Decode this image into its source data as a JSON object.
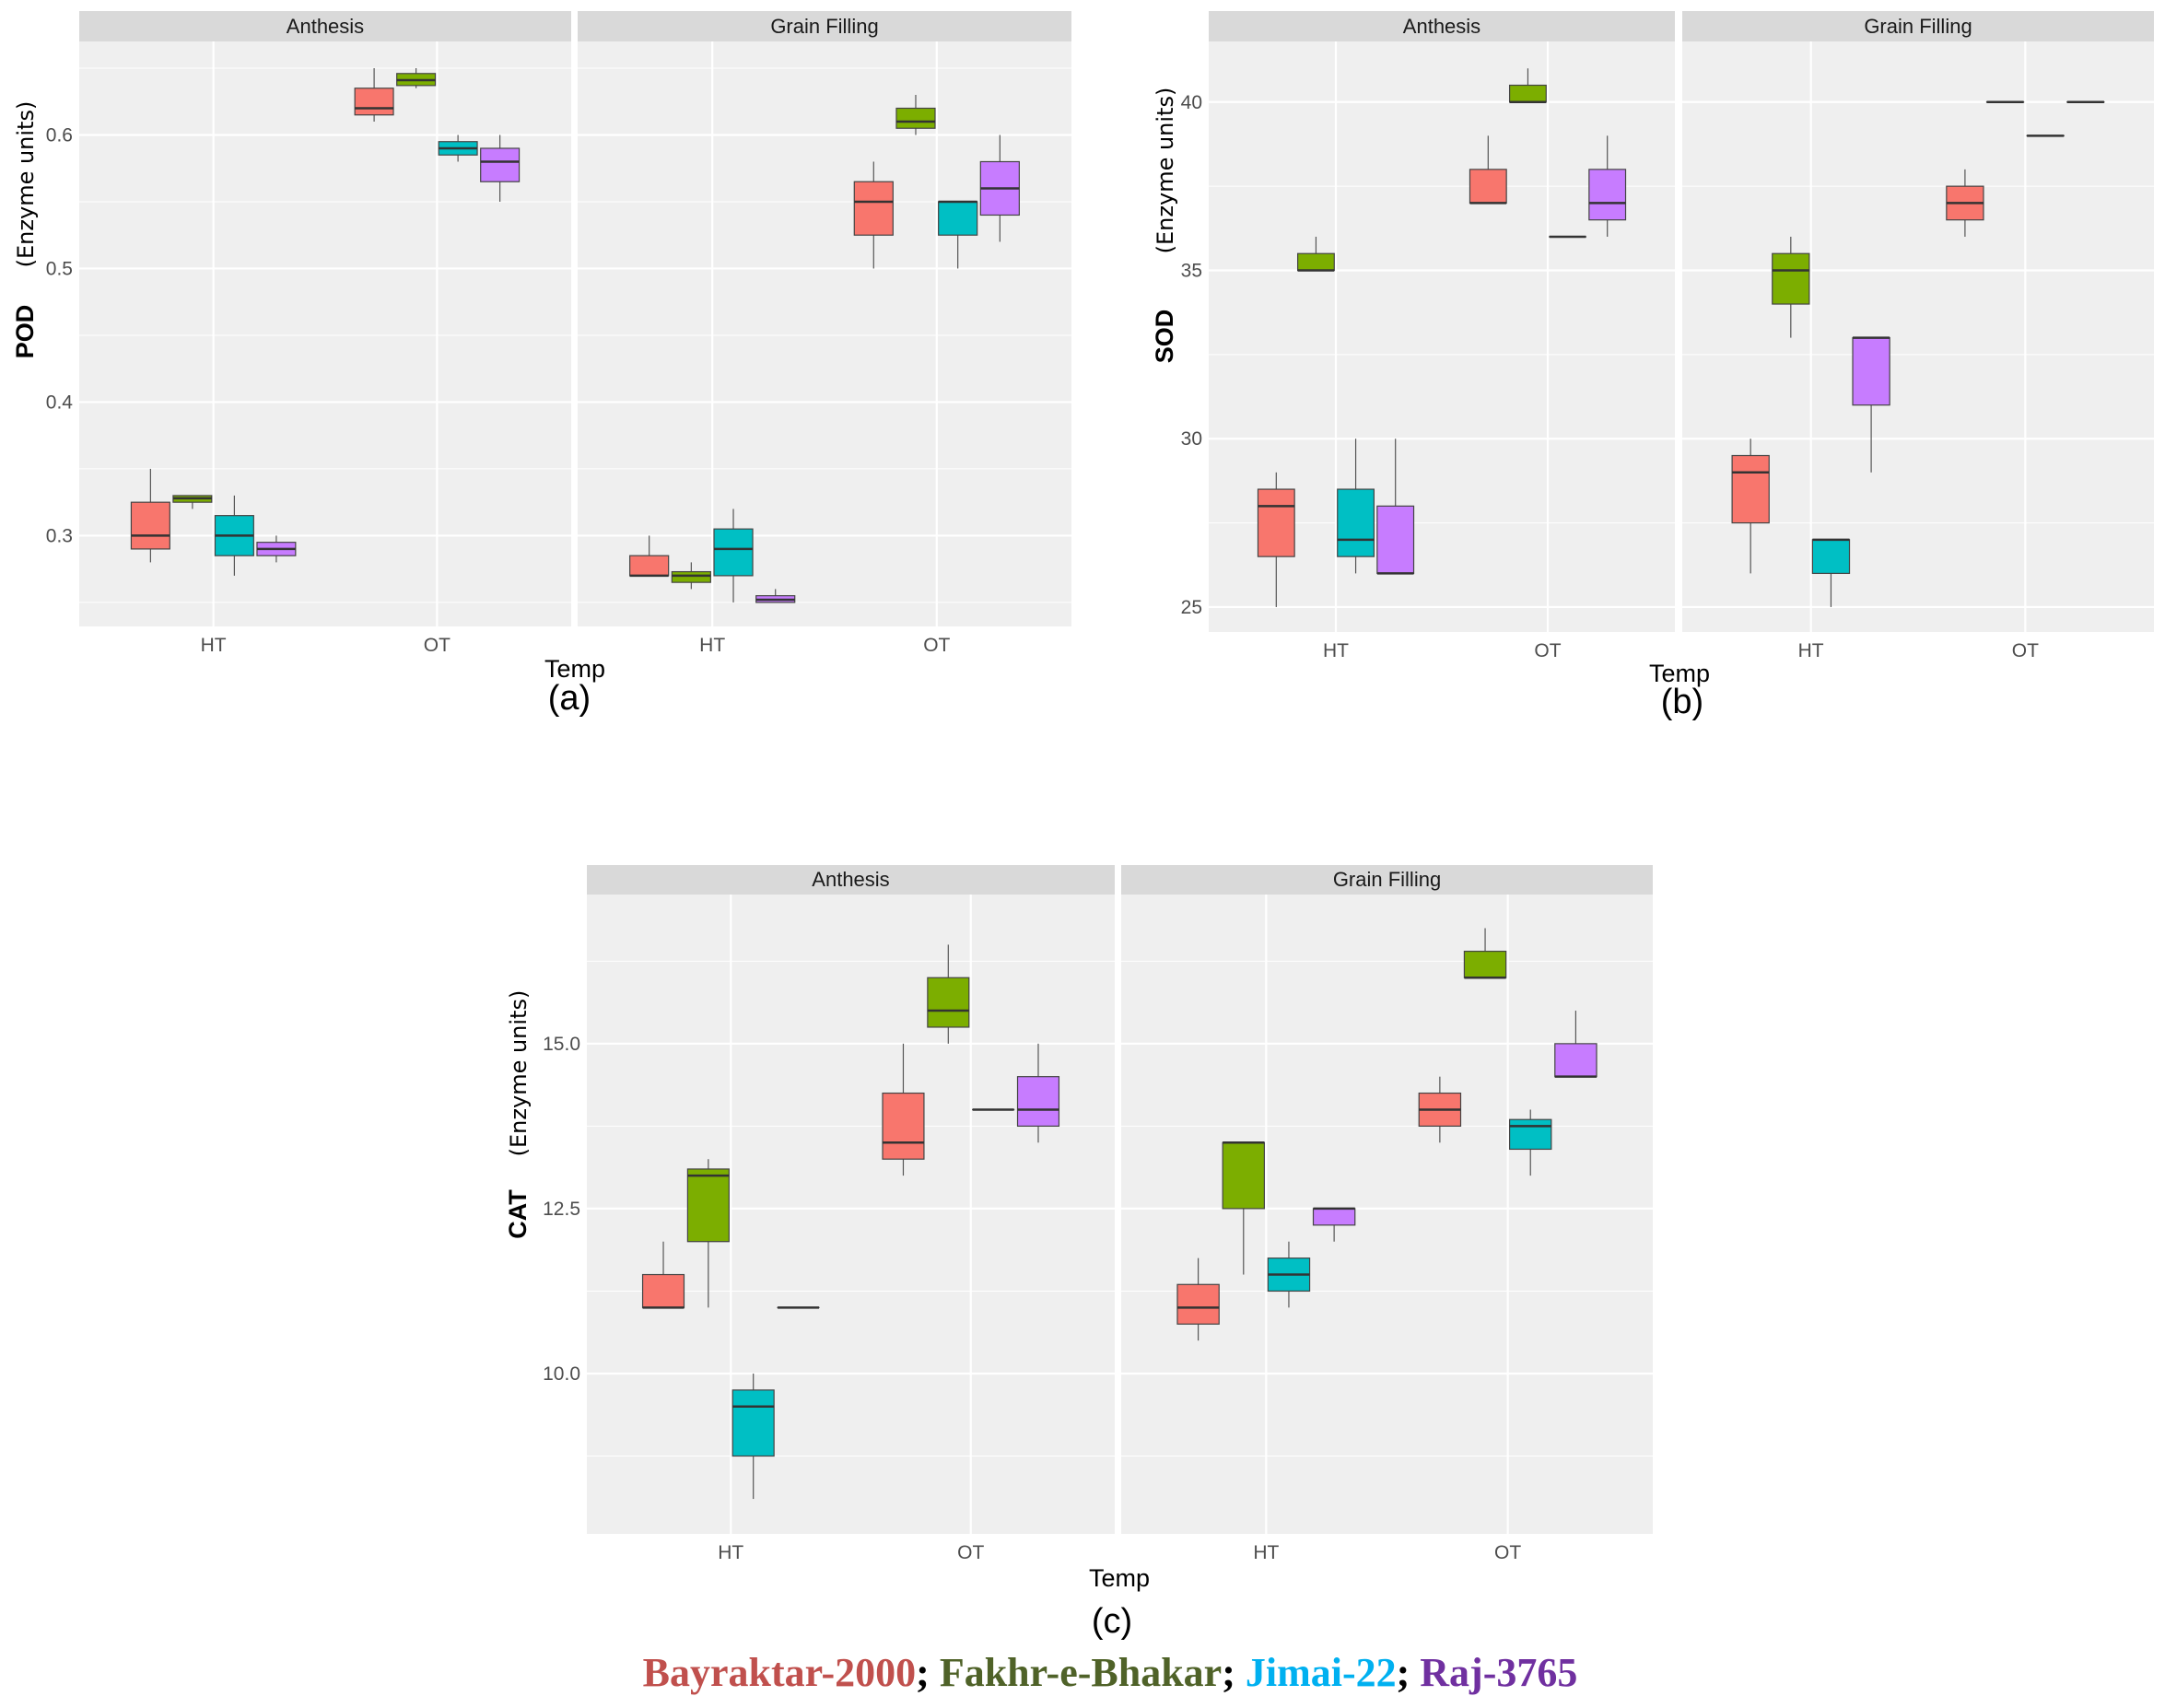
{
  "legend": {
    "items": [
      {
        "label": "Bayraktar-2000",
        "color": "#c0504d"
      },
      {
        "label": "Fakhr-e-Bhakar",
        "color": "#4f6228"
      },
      {
        "label": "Jimai-22",
        "color": "#00b0f0"
      },
      {
        "label": "Raj-3765",
        "color": "#7030a0"
      }
    ],
    "separator": ";"
  },
  "fill_colors": [
    "#F8766D",
    "#7CAE00",
    "#00BFC4",
    "#C77CFF"
  ],
  "chart_data": [
    {
      "type": "box",
      "panel_label": "(a)",
      "ylabel": "POD",
      "yunit": "(Enzyme units)",
      "xlabel": "Temp",
      "facets": [
        "Anthesis",
        "Grain Filling"
      ],
      "categories": [
        "HT",
        "OT"
      ],
      "ylim": [
        0.232,
        0.67
      ],
      "yticks": [
        0.3,
        0.4,
        0.5,
        0.6
      ],
      "ytick_labels": [
        "0.3",
        "0.4",
        "0.5",
        "0.6"
      ],
      "box_format": "[min, q1, median, q3, max]",
      "data": [
        [
          [
            [
              0.28,
              0.29,
              0.3,
              0.325,
              0.35
            ],
            [
              0.32,
              0.325,
              0.328,
              0.33,
              0.33
            ],
            [
              0.27,
              0.285,
              0.3,
              0.315,
              0.33
            ],
            [
              0.28,
              0.285,
              0.29,
              0.295,
              0.3
            ]
          ],
          [
            [
              0.61,
              0.615,
              0.62,
              0.635,
              0.65
            ],
            [
              0.635,
              0.637,
              0.641,
              0.646,
              0.65
            ],
            [
              0.58,
              0.585,
              0.59,
              0.595,
              0.6
            ],
            [
              0.55,
              0.565,
              0.58,
              0.59,
              0.6
            ]
          ]
        ],
        [
          [
            [
              0.27,
              0.27,
              0.27,
              0.285,
              0.3
            ],
            [
              0.26,
              0.265,
              0.27,
              0.273,
              0.28
            ],
            [
              0.25,
              0.27,
              0.29,
              0.305,
              0.32
            ],
            [
              0.25,
              0.25,
              0.252,
              0.255,
              0.26
            ]
          ],
          [
            [
              0.5,
              0.525,
              0.55,
              0.565,
              0.58
            ],
            [
              0.6,
              0.605,
              0.61,
              0.62,
              0.63
            ],
            [
              0.5,
              0.525,
              0.55,
              0.55,
              0.55
            ],
            [
              0.52,
              0.54,
              0.56,
              0.58,
              0.6
            ]
          ]
        ]
      ]
    },
    {
      "type": "box",
      "panel_label": "(b)",
      "ylabel": "SOD",
      "yunit": "(Enzyme units)",
      "xlabel": "Temp",
      "facets": [
        "Anthesis",
        "Grain Filling"
      ],
      "categories": [
        "HT",
        "OT"
      ],
      "ylim": [
        24.26,
        41.8
      ],
      "yticks": [
        25,
        30,
        35,
        40
      ],
      "ytick_labels": [
        "25",
        "30",
        "35",
        "40"
      ],
      "box_format": "[min, q1, median, q3, max]",
      "data": [
        [
          [
            [
              25,
              26.5,
              28,
              28.5,
              29
            ],
            [
              35,
              35,
              35,
              35.5,
              36
            ],
            [
              26,
              26.5,
              27,
              28.5,
              30
            ],
            [
              26,
              26,
              26,
              28,
              30
            ]
          ],
          [
            [
              37,
              37,
              37,
              38,
              39
            ],
            [
              40,
              40,
              40,
              40.5,
              41
            ],
            [
              36,
              36,
              36,
              36,
              36
            ],
            [
              36,
              36.5,
              37,
              38,
              39
            ]
          ]
        ],
        [
          [
            [
              26,
              27.5,
              29,
              29.5,
              30
            ],
            [
              33,
              34,
              35,
              35.5,
              36
            ],
            [
              25,
              26,
              27,
              27,
              27
            ],
            [
              29,
              31,
              33,
              33,
              33
            ]
          ],
          [
            [
              36,
              36.5,
              37,
              37.5,
              38
            ],
            [
              40,
              40,
              40,
              40,
              40
            ],
            [
              39,
              39,
              39,
              39,
              39
            ],
            [
              40,
              40,
              40,
              40,
              40
            ]
          ]
        ]
      ]
    },
    {
      "type": "box",
      "panel_label": "(c)",
      "ylabel": "CAT",
      "yunit": "(Enzyme units)",
      "xlabel": "Temp",
      "facets": [
        "Anthesis",
        "Grain Filling"
      ],
      "categories": [
        "HT",
        "OT"
      ],
      "ylim": [
        7.57,
        17.26
      ],
      "yticks": [
        10,
        12.5,
        15
      ],
      "ytick_labels": [
        "10.0",
        "12.5",
        "15.0"
      ],
      "box_format": "[min, q1, median, q3, max]",
      "data": [
        [
          [
            [
              11,
              11,
              11,
              11.5,
              12
            ],
            [
              11,
              12,
              13,
              13.1,
              13.25
            ],
            [
              8.1,
              8.75,
              9.5,
              9.75,
              10
            ],
            [
              11,
              11,
              11,
              11,
              11
            ]
          ],
          [
            [
              13,
              13.25,
              13.5,
              14.25,
              15
            ],
            [
              15,
              15.25,
              15.5,
              16,
              16.5
            ],
            [
              14,
              14,
              14,
              14,
              14
            ],
            [
              13.5,
              13.75,
              14,
              14.5,
              15
            ]
          ]
        ],
        [
          [
            [
              10.5,
              10.75,
              11,
              11.35,
              11.75
            ],
            [
              11.5,
              12.5,
              13.5,
              13.5,
              13.5
            ],
            [
              11,
              11.25,
              11.5,
              11.75,
              12
            ],
            [
              12,
              12.25,
              12.5,
              12.5,
              12.5
            ]
          ],
          [
            [
              13.5,
              13.75,
              14,
              14.25,
              14.5
            ],
            [
              16,
              16,
              16,
              16.4,
              16.75
            ],
            [
              13,
              13.4,
              13.75,
              13.85,
              14
            ],
            [
              14.5,
              14.5,
              14.5,
              15,
              15.5
            ]
          ]
        ]
      ]
    }
  ]
}
